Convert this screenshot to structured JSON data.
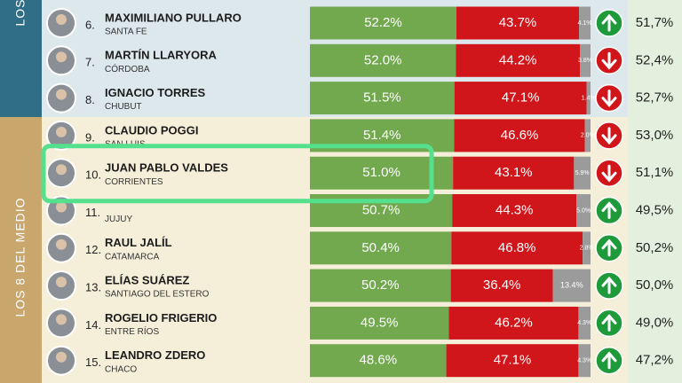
{
  "groups": [
    {
      "label": "LOS"
    },
    {
      "label": "LOS 8 DEL MEDIO"
    }
  ],
  "rows": [
    {
      "rank": "6.",
      "name": "MAXIMILIANO PULLARO",
      "province": "SANTA FE",
      "approve": 52.2,
      "approve_label": "52.2%",
      "disapprove": 43.7,
      "disapprove_label": "43.7%",
      "unsure": 4.1,
      "unsure_label": "4.1%",
      "trend": "up",
      "previous": "51,7%",
      "group": 0
    },
    {
      "rank": "7.",
      "name": "MARTÍN LLARYORA",
      "province": "CÓRDOBA",
      "approve": 52.0,
      "approve_label": "52.0%",
      "disapprove": 44.2,
      "disapprove_label": "44.2%",
      "unsure": 3.8,
      "unsure_label": "3.8%",
      "trend": "down",
      "previous": "52,4%",
      "group": 0
    },
    {
      "rank": "8.",
      "name": "IGNACIO TORRES",
      "province": "CHUBUT",
      "approve": 51.5,
      "approve_label": "51.5%",
      "disapprove": 47.1,
      "disapprove_label": "47.1%",
      "unsure": 1.4,
      "unsure_label": "1.4%",
      "trend": "down",
      "previous": "52,7%",
      "group": 0
    },
    {
      "rank": "9.",
      "name": "CLAUDIO POGGI",
      "province": "SAN LUIS",
      "approve": 51.4,
      "approve_label": "51.4%",
      "disapprove": 46.6,
      "disapprove_label": "46.6%",
      "unsure": 2.0,
      "unsure_label": "2.0%",
      "trend": "down",
      "previous": "53,0%",
      "group": 1
    },
    {
      "rank": "10.",
      "name": "JUAN PABLO VALDES",
      "province": "CORRIENTES",
      "approve": 51.0,
      "approve_label": "51.0%",
      "disapprove": 43.1,
      "disapprove_label": "43.1%",
      "unsure": 5.9,
      "unsure_label": "5.9%",
      "trend": "down",
      "previous": "51,1%",
      "group": 1,
      "highlight": true
    },
    {
      "rank": "11.",
      "name": null,
      "province": "JUJUY",
      "approve": 50.7,
      "approve_label": "50.7%",
      "disapprove": 44.3,
      "disapprove_label": "44.3%",
      "unsure": 5.0,
      "unsure_label": "5.0%",
      "trend": "up",
      "previous": "49,5%",
      "group": 1
    },
    {
      "rank": "12.",
      "name": "RAUL JALÍL",
      "province": "CATAMARCA",
      "approve": 50.4,
      "approve_label": "50.4%",
      "disapprove": 46.8,
      "disapprove_label": "46.8%",
      "unsure": 2.8,
      "unsure_label": "2.8%",
      "trend": "up",
      "previous": "50,2%",
      "group": 1
    },
    {
      "rank": "13.",
      "name": "ELÍAS SUÁREZ",
      "province": "SANTIAGO DEL ESTERO",
      "approve": 50.2,
      "approve_label": "50.2%",
      "disapprove": 36.4,
      "disapprove_label": "36.4%",
      "unsure": 13.4,
      "unsure_label": "13.4%",
      "trend": "up",
      "previous": "50,0%",
      "group": 1
    },
    {
      "rank": "14.",
      "name": "ROGELIO FRIGERIO",
      "province": "ENTRE RÍOS",
      "approve": 49.5,
      "approve_label": "49.5%",
      "disapprove": 46.2,
      "disapprove_label": "46.2%",
      "unsure": 4.3,
      "unsure_label": "4.3%",
      "trend": "up",
      "previous": "49,0%",
      "group": 1
    },
    {
      "rank": "15.",
      "name": "LEANDRO ZDERO",
      "province": "CHACO",
      "approve": 48.6,
      "approve_label": "48.6%",
      "disapprove": 47.1,
      "disapprove_label": "47.1%",
      "unsure": 4.3,
      "unsure_label": "4.3%",
      "trend": "up",
      "previous": "47,2%",
      "group": 1
    }
  ]
}
